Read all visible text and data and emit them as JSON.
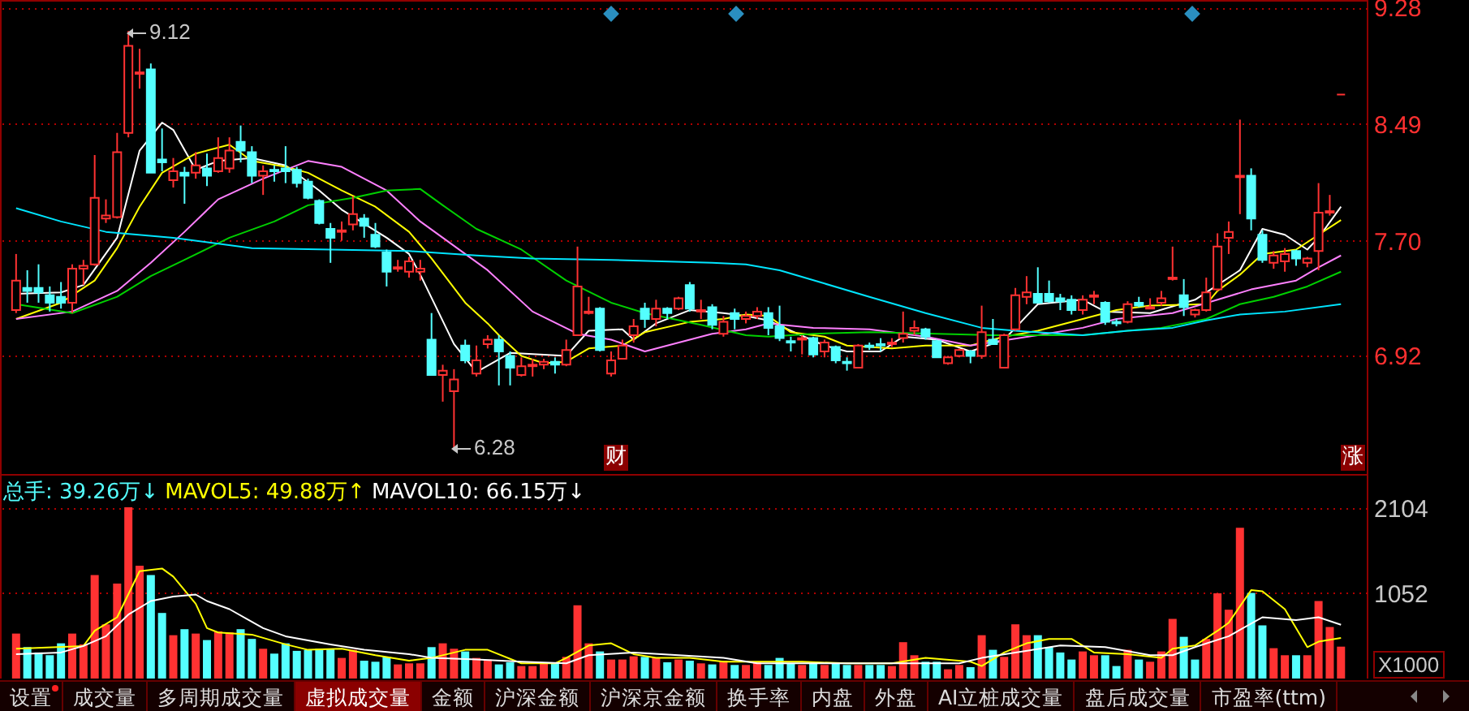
{
  "chart_data": [
    {
      "type": "candlestick",
      "categories": [
        null,
        null,
        null,
        null,
        null,
        null,
        null,
        null,
        null,
        null,
        null,
        null,
        null,
        null,
        null,
        null,
        null,
        null,
        null,
        null,
        null,
        null,
        null,
        null,
        null,
        null,
        null,
        null,
        null,
        null,
        null,
        null,
        null,
        null,
        null,
        null,
        null,
        null,
        null,
        null,
        null,
        null,
        null,
        null,
        null,
        null,
        null,
        null,
        null,
        null,
        null,
        null,
        null,
        null,
        null,
        null,
        null,
        null,
        null,
        null,
        null,
        null,
        null,
        null,
        null,
        null,
        null,
        null,
        null,
        null,
        null,
        null,
        null,
        null,
        null,
        null,
        null,
        null,
        null,
        null,
        null,
        null,
        null,
        null,
        null,
        null,
        null,
        null,
        null,
        null,
        null,
        null,
        null,
        null,
        null,
        null,
        null,
        null,
        null,
        null,
        null,
        null,
        null,
        null,
        null,
        null,
        null,
        null,
        null,
        null,
        null,
        null,
        null,
        null,
        null,
        null,
        null,
        null,
        null
      ],
      "ohlc": [
        [
          7.23,
          7.61,
          7.21,
          7.43
        ],
        [
          7.38,
          7.5,
          7.28,
          7.36
        ],
        [
          7.38,
          7.54,
          7.28,
          7.35
        ],
        [
          7.33,
          7.39,
          7.22,
          7.28
        ],
        [
          7.32,
          7.42,
          7.24,
          7.28
        ],
        [
          7.28,
          7.54,
          7.21,
          7.51
        ],
        [
          7.51,
          7.57,
          7.4,
          7.53
        ],
        [
          7.54,
          8.28,
          7.53,
          7.99
        ],
        [
          7.85,
          7.98,
          7.82,
          7.87
        ],
        [
          7.86,
          8.43,
          7.85,
          8.3
        ],
        [
          8.43,
          9.12,
          8.4,
          9.02
        ],
        [
          8.83,
          9.0,
          8.73,
          8.84
        ],
        [
          8.86,
          8.9,
          8.16,
          8.16
        ],
        [
          8.25,
          8.46,
          8.17,
          8.23
        ],
        [
          8.11,
          8.26,
          8.06,
          8.17
        ],
        [
          8.16,
          8.2,
          7.95,
          8.14
        ],
        [
          8.16,
          8.3,
          8.12,
          8.21
        ],
        [
          8.19,
          8.29,
          8.07,
          8.14
        ],
        [
          8.17,
          8.4,
          8.16,
          8.26
        ],
        [
          8.19,
          8.4,
          8.16,
          8.31
        ],
        [
          8.37,
          8.48,
          8.23,
          8.31
        ],
        [
          8.3,
          8.34,
          8.09,
          8.14
        ],
        [
          8.14,
          8.21,
          8.01,
          8.17
        ],
        [
          8.18,
          8.21,
          8.1,
          8.17
        ],
        [
          8.19,
          8.34,
          8.09,
          8.17
        ],
        [
          8.18,
          8.2,
          8.06,
          8.09
        ],
        [
          8.1,
          8.12,
          7.98,
          7.99
        ],
        [
          7.97,
          7.98,
          7.81,
          7.82
        ],
        [
          7.78,
          7.82,
          7.55,
          7.72
        ],
        [
          7.76,
          7.83,
          7.7,
          7.77
        ],
        [
          7.81,
          8.0,
          7.77,
          7.88
        ],
        [
          7.85,
          7.88,
          7.72,
          7.8
        ],
        [
          7.74,
          7.82,
          7.65,
          7.66
        ],
        [
          7.62,
          7.64,
          7.39,
          7.49
        ],
        [
          7.51,
          7.57,
          7.49,
          7.52
        ],
        [
          7.49,
          7.59,
          7.45,
          7.56
        ],
        [
          7.49,
          7.57,
          7.43,
          7.51
        ],
        [
          7.03,
          7.21,
          6.79,
          6.79
        ],
        [
          6.79,
          6.86,
          6.61,
          6.82
        ],
        [
          6.68,
          6.83,
          6.28,
          6.76
        ],
        [
          6.99,
          7.03,
          6.87,
          6.89
        ],
        [
          6.8,
          6.99,
          6.78,
          6.89
        ],
        [
          7.0,
          7.06,
          6.97,
          7.03
        ],
        [
          7.03,
          7.06,
          6.72,
          6.95
        ],
        [
          6.92,
          6.95,
          6.72,
          6.84
        ],
        [
          6.79,
          6.91,
          6.78,
          6.85
        ],
        [
          6.85,
          6.9,
          6.78,
          6.86
        ],
        [
          6.86,
          6.9,
          6.83,
          6.88
        ],
        [
          6.88,
          6.91,
          6.8,
          6.86
        ],
        [
          6.86,
          7.03,
          6.85,
          6.96
        ],
        [
          7.06,
          7.66,
          7.06,
          7.39
        ],
        [
          7.21,
          7.32,
          7.2,
          7.22
        ],
        [
          7.24,
          7.25,
          6.95,
          6.96
        ],
        [
          6.8,
          6.95,
          6.78,
          6.89
        ],
        [
          6.9,
          7.03,
          6.9,
          6.99
        ],
        [
          7.06,
          7.17,
          7.01,
          7.12
        ],
        [
          7.24,
          7.28,
          7.11,
          7.17
        ],
        [
          7.17,
          7.3,
          7.12,
          7.24
        ],
        [
          7.24,
          7.25,
          7.17,
          7.21
        ],
        [
          7.24,
          7.32,
          7.23,
          7.31
        ],
        [
          7.4,
          7.42,
          7.22,
          7.24
        ],
        [
          7.22,
          7.3,
          7.17,
          7.23
        ],
        [
          7.25,
          7.27,
          7.1,
          7.13
        ],
        [
          7.07,
          7.19,
          7.05,
          7.15
        ],
        [
          7.21,
          7.24,
          7.1,
          7.17
        ],
        [
          7.17,
          7.22,
          7.14,
          7.19
        ],
        [
          7.19,
          7.25,
          7.17,
          7.22
        ],
        [
          7.21,
          7.25,
          7.06,
          7.11
        ],
        [
          7.12,
          7.26,
          7.02,
          7.04
        ],
        [
          7.02,
          7.05,
          6.95,
          7.01
        ],
        [
          7.03,
          7.06,
          6.93,
          7.04
        ],
        [
          7.04,
          7.05,
          6.91,
          6.93
        ],
        [
          6.95,
          7.03,
          6.91,
          7.01
        ],
        [
          6.98,
          6.99,
          6.87,
          6.89
        ],
        [
          6.88,
          6.91,
          6.82,
          6.87
        ],
        [
          6.84,
          7.0,
          6.84,
          6.99
        ],
        [
          6.99,
          7.01,
          6.96,
          6.98
        ],
        [
          7.0,
          7.04,
          6.95,
          6.99
        ],
        [
          7.0,
          7.04,
          6.98,
          7.01
        ],
        [
          7.04,
          7.22,
          7.01,
          7.07
        ],
        [
          7.09,
          7.16,
          7.06,
          7.11
        ],
        [
          7.1,
          7.11,
          7.03,
          7.05
        ],
        [
          7.02,
          7.03,
          6.91,
          6.91
        ],
        [
          6.87,
          6.92,
          6.86,
          6.91
        ],
        [
          6.92,
          6.97,
          6.91,
          6.96
        ],
        [
          6.95,
          6.96,
          6.87,
          6.92
        ],
        [
          6.92,
          7.26,
          6.9,
          7.08
        ],
        [
          7.03,
          7.17,
          7.0,
          7.0
        ],
        [
          6.84,
          7.07,
          6.84,
          7.06
        ],
        [
          7.1,
          7.38,
          7.09,
          7.33
        ],
        [
          7.32,
          7.46,
          7.27,
          7.35
        ],
        [
          7.34,
          7.52,
          7.28,
          7.28
        ],
        [
          7.34,
          7.43,
          7.28,
          7.29
        ],
        [
          7.31,
          7.34,
          7.23,
          7.29
        ],
        [
          7.3,
          7.33,
          7.2,
          7.23
        ],
        [
          7.23,
          7.33,
          7.2,
          7.3
        ],
        [
          7.32,
          7.36,
          7.27,
          7.33
        ],
        [
          7.28,
          7.29,
          7.13,
          7.15
        ],
        [
          7.15,
          7.17,
          7.12,
          7.14
        ],
        [
          7.15,
          7.29,
          7.14,
          7.27
        ],
        [
          7.28,
          7.32,
          7.25,
          7.26
        ],
        [
          7.24,
          7.31,
          7.24,
          7.25
        ],
        [
          7.28,
          7.36,
          7.26,
          7.31
        ],
        [
          7.44,
          7.66,
          7.43,
          7.45
        ],
        [
          7.33,
          7.44,
          7.19,
          7.25
        ],
        [
          7.2,
          7.24,
          7.18,
          7.23
        ],
        [
          7.23,
          7.45,
          7.22,
          7.35
        ],
        [
          7.37,
          7.75,
          7.36,
          7.66
        ],
        [
          7.72,
          7.83,
          7.61,
          7.76
        ],
        [
          8.13,
          8.52,
          7.88,
          8.14
        ],
        [
          8.14,
          8.19,
          7.77,
          7.85
        ],
        [
          7.74,
          7.77,
          7.55,
          7.57
        ],
        [
          7.55,
          7.63,
          7.51,
          7.6
        ],
        [
          7.56,
          7.65,
          7.49,
          7.61
        ],
        [
          7.63,
          7.64,
          7.53,
          7.58
        ],
        [
          7.55,
          7.59,
          7.52,
          7.58
        ],
        [
          7.63,
          8.09,
          7.5,
          7.89
        ],
        [
          7.89,
          8.01,
          7.87,
          7.9
        ],
        [
          8.69,
          8.69,
          8.69,
          8.69
        ]
      ],
      "series": [
        {
          "type": "line",
          "color": "#ffffff",
          "values": [
            7.34,
            null,
            null,
            null,
            7.35,
            null,
            7.4,
            null,
            null,
            7.72,
            null,
            8.31,
            null,
            8.5,
            8.45,
            null,
            8.18,
            null,
            8.24,
            null,
            null,
            8.26,
            null,
            null,
            8.21,
            null,
            null,
            8.04,
            null,
            7.91,
            null,
            null,
            null,
            7.72,
            null,
            7.61,
            7.47,
            null,
            null,
            7.0,
            null,
            6.81,
            null,
            null,
            6.94,
            null,
            null,
            null,
            null,
            6.92,
            null,
            7.09,
            null,
            null,
            7.1,
            7.03,
            null,
            7.14,
            null,
            null,
            7.23,
            null,
            null,
            7.21,
            null,
            7.19,
            null,
            7.16,
            null,
            7.09,
            null,
            null,
            6.99,
            null,
            6.95,
            null,
            null,
            6.95,
            null,
            7.05,
            null,
            null,
            7.03,
            null,
            null,
            6.95,
            null,
            null,
            7.03,
            null,
            null,
            7.27,
            null,
            null,
            null,
            7.3,
            null,
            7.22,
            null,
            null,
            null,
            7.21,
            null,
            null,
            null,
            7.3,
            null,
            null,
            null,
            7.5,
            null,
            7.78,
            null,
            7.74,
            null,
            7.64,
            7.72,
            null,
            7.93
          ]
        },
        {
          "type": "line",
          "color": "#ffff00",
          "values": [
            7.17,
            null,
            null,
            null,
            7.28,
            null,
            null,
            7.43,
            null,
            7.65,
            null,
            7.93,
            null,
            8.16,
            null,
            null,
            8.29,
            null,
            null,
            8.35,
            null,
            8.24,
            null,
            null,
            8.2,
            null,
            8.16,
            null,
            null,
            8.04,
            null,
            null,
            7.93,
            null,
            null,
            7.76,
            null,
            7.58,
            null,
            null,
            7.28,
            null,
            7.14,
            7.06,
            null,
            6.92,
            null,
            6.87,
            null,
            6.88,
            null,
            6.97,
            null,
            null,
            6.99,
            null,
            7.08,
            null,
            null,
            null,
            7.15,
            null,
            null,
            7.17,
            null,
            7.2,
            null,
            7.19,
            null,
            7.08,
            null,
            null,
            7.05,
            null,
            6.99,
            null,
            null,
            null,
            6.97,
            null,
            null,
            6.99,
            null,
            null,
            null,
            6.99,
            null,
            null,
            7.05,
            null,
            null,
            7.09,
            null,
            null,
            null,
            7.17,
            null,
            null,
            7.23,
            null,
            null,
            7.26,
            null,
            null,
            null,
            null,
            7.27,
            7.36,
            null,
            7.47,
            null,
            7.61,
            null,
            null,
            7.64,
            null,
            7.74,
            null,
            7.84
          ]
        },
        {
          "type": "line",
          "color": "#ff80ff",
          "values": [
            7.17,
            null,
            null,
            null,
            null,
            7.22,
            null,
            null,
            null,
            7.36,
            null,
            null,
            7.55,
            null,
            null,
            7.76,
            null,
            null,
            7.98,
            null,
            null,
            null,
            8.12,
            null,
            null,
            null,
            8.24,
            null,
            null,
            8.2,
            null,
            null,
            null,
            8.04,
            null,
            null,
            7.83,
            null,
            null,
            null,
            7.61,
            null,
            7.5,
            null,
            null,
            null,
            7.22,
            null,
            null,
            null,
            7.07,
            null,
            null,
            7.03,
            null,
            null,
            6.95,
            null,
            null,
            null,
            7.03,
            null,
            7.07,
            null,
            null,
            7.1,
            null,
            7.14,
            null,
            null,
            null,
            7.11,
            null,
            null,
            null,
            null,
            7.1,
            null,
            null,
            null,
            null,
            7.05,
            null,
            null,
            null,
            6.99,
            null,
            null,
            null,
            null,
            null,
            7.06,
            null,
            null,
            null,
            7.11,
            null,
            null,
            7.17,
            null,
            null,
            null,
            null,
            7.21,
            null,
            null,
            null,
            7.3,
            null,
            null,
            7.37,
            null,
            null,
            null,
            7.43,
            null,
            7.52,
            null,
            7.6
          ]
        },
        {
          "type": "line",
          "color": "#00d000",
          "values": [
            7.27,
            null,
            null,
            null,
            null,
            7.21,
            null,
            null,
            null,
            7.32,
            null,
            null,
            7.46,
            null,
            null,
            7.57,
            null,
            null,
            null,
            7.72,
            null,
            null,
            null,
            7.83,
            null,
            null,
            7.94,
            null,
            null,
            null,
            7.99,
            null,
            null,
            8.04,
            null,
            null,
            8.05,
            null,
            7.94,
            null,
            null,
            7.78,
            null,
            null,
            null,
            7.64,
            null,
            null,
            null,
            7.43,
            null,
            null,
            null,
            7.28,
            null,
            null,
            7.21,
            null,
            null,
            null,
            null,
            7.13,
            null,
            null,
            null,
            7.06,
            null,
            7.05,
            null,
            null,
            null,
            7.07,
            null,
            null,
            null,
            null,
            7.08,
            null,
            null,
            null,
            null,
            null,
            7.07,
            null,
            null,
            null,
            null,
            7.06,
            null,
            null,
            null,
            null,
            7.06,
            null,
            null,
            7.06,
            null,
            null,
            null,
            7.09,
            null,
            null,
            7.11,
            null,
            null,
            null,
            7.17,
            null,
            null,
            7.27,
            null,
            null,
            7.32,
            null,
            null,
            7.39,
            null,
            null,
            7.49
          ]
        },
        {
          "type": "line",
          "color": "#00e5ff",
          "values": [
            7.92,
            null,
            null,
            null,
            7.83,
            null,
            null,
            null,
            7.76,
            null,
            null,
            null,
            null,
            null,
            7.72,
            null,
            null,
            null,
            null,
            null,
            null,
            7.65,
            null,
            null,
            null,
            null,
            null,
            null,
            7.64,
            null,
            null,
            null,
            null,
            null,
            null,
            7.63,
            null,
            null,
            null,
            null,
            null,
            7.6,
            null,
            null,
            null,
            null,
            7.58,
            null,
            null,
            null,
            null,
            null,
            null,
            7.57,
            null,
            null,
            null,
            null,
            null,
            null,
            null,
            null,
            7.55,
            null,
            null,
            7.54,
            null,
            null,
            7.5,
            null,
            null,
            null,
            7.41,
            null,
            null,
            null,
            7.32,
            null,
            null,
            null,
            null,
            7.21,
            null,
            null,
            null,
            null,
            7.11,
            null,
            null,
            7.09,
            null,
            null,
            null,
            null,
            null,
            7.06,
            null,
            null,
            null,
            7.09,
            null,
            null,
            null,
            7.11,
            null,
            null,
            7.16,
            null,
            null,
            7.2,
            null,
            null,
            null,
            7.22,
            null,
            null,
            null,
            null,
            7.27
          ]
        }
      ],
      "ylim": [
        6.12,
        9.33
      ],
      "yticks": [
        {
          "value": 6.92,
          "label": "6.92"
        },
        {
          "value": 7.7,
          "label": "7.70"
        },
        {
          "value": 8.49,
          "label": "8.49"
        },
        {
          "value": 9.28,
          "label": "9.28"
        }
      ],
      "grid": "y",
      "tick_labels": "y",
      "annotations": [
        "9.12",
        "6.28",
        "财",
        "涨"
      ]
    },
    {
      "type": "bar",
      "categories": [
        null,
        null,
        null,
        null,
        null,
        null,
        null,
        null,
        null,
        null,
        null,
        null,
        null,
        null,
        null,
        null,
        null,
        null,
        null,
        null,
        null,
        null,
        null,
        null,
        null,
        null,
        null,
        null,
        null,
        null,
        null,
        null,
        null,
        null,
        null,
        null,
        null,
        null,
        null,
        null,
        null,
        null,
        null,
        null,
        null,
        null,
        null,
        null,
        null,
        null,
        null,
        null,
        null,
        null,
        null,
        null,
        null,
        null,
        null,
        null,
        null,
        null,
        null,
        null,
        null,
        null,
        null,
        null,
        null,
        null,
        null,
        null,
        null,
        null,
        null,
        null,
        null,
        null,
        null,
        null,
        null,
        null,
        null,
        null,
        null,
        null,
        null,
        null,
        null,
        null,
        null,
        null,
        null,
        null,
        null,
        null,
        null,
        null,
        null,
        null,
        null,
        null,
        null,
        null,
        null,
        null,
        null,
        null,
        null,
        null,
        null,
        null,
        null,
        null,
        null,
        null,
        null,
        null,
        null
      ],
      "series": [
        {
          "type": "bar",
          "values": [
            554,
            387,
            321,
            287,
            434,
            554,
            421,
            1276,
            668,
            1169,
            2111,
            1389,
            1276,
            808,
            534,
            608,
            554,
            474,
            581,
            568,
            608,
            488,
            367,
            307,
            434,
            341,
            354,
            367,
            367,
            254,
            354,
            220,
            207,
            267,
            174,
            187,
            187,
            387,
            434,
            367,
            334,
            254,
            234,
            174,
            200,
            154,
            154,
            187,
            200,
            267,
            902,
            434,
            334,
            234,
            234,
            274,
            267,
            254,
            200,
            234,
            220,
            187,
            174,
            220,
            167,
            167,
            207,
            167,
            254,
            187,
            167,
            187,
            167,
            200,
            167,
            167,
            167,
            167,
            154,
            448,
            287,
            207,
            207,
            114,
            167,
            140,
            534,
            354,
            267,
            668,
            534,
            534,
            387,
            321,
            234,
            334,
            287,
            287,
            154,
            354,
            234,
            207,
            334,
            735,
            514,
            234,
            488,
            1049,
            848,
            1857,
            1055,
            655,
            374,
            287,
            287,
            287,
            955,
            635,
            393
          ],
          "colors": [
            "#ff3232",
            "#54ffff",
            "#54ffff",
            "#54ffff",
            "#54ffff",
            "#ff3232",
            "#ff3232",
            "#ff3232",
            "#ff3232",
            "#ff3232",
            "#ff3232",
            "#ff3232",
            "#54ffff",
            "#54ffff",
            "#ff3232",
            "#54ffff",
            "#ff3232",
            "#54ffff",
            "#ff3232",
            "#ff3232",
            "#54ffff",
            "#54ffff",
            "#ff3232",
            "#54ffff",
            "#54ffff",
            "#54ffff",
            "#54ffff",
            "#54ffff",
            "#54ffff",
            "#ff3232",
            "#ff3232",
            "#54ffff",
            "#54ffff",
            "#54ffff",
            "#ff3232",
            "#ff3232",
            "#ff3232",
            "#54ffff",
            "#ff3232",
            "#ff3232",
            "#54ffff",
            "#ff3232",
            "#ff3232",
            "#54ffff",
            "#54ffff",
            "#ff3232",
            "#ff3232",
            "#ff3232",
            "#54ffff",
            "#ff3232",
            "#ff3232",
            "#ff3232",
            "#54ffff",
            "#ff3232",
            "#ff3232",
            "#ff3232",
            "#54ffff",
            "#ff3232",
            "#54ffff",
            "#ff3232",
            "#54ffff",
            "#ff3232",
            "#54ffff",
            "#ff3232",
            "#54ffff",
            "#ff3232",
            "#ff3232",
            "#54ffff",
            "#54ffff",
            "#54ffff",
            "#ff3232",
            "#54ffff",
            "#ff3232",
            "#54ffff",
            "#54ffff",
            "#ff3232",
            "#54ffff",
            "#54ffff",
            "#ff3232",
            "#ff3232",
            "#ff3232",
            "#54ffff",
            "#54ffff",
            "#ff3232",
            "#ff3232",
            "#54ffff",
            "#ff3232",
            "#54ffff",
            "#ff3232",
            "#ff3232",
            "#ff3232",
            "#54ffff",
            "#54ffff",
            "#54ffff",
            "#54ffff",
            "#ff3232",
            "#ff3232",
            "#54ffff",
            "#54ffff",
            "#ff3232",
            "#54ffff",
            "#ff3232",
            "#ff3232",
            "#ff3232",
            "#54ffff",
            "#54ffff",
            "#ff3232",
            "#ff3232",
            "#ff3232",
            "#ff3232",
            "#54ffff",
            "#54ffff",
            "#ff3232",
            "#ff3232",
            "#54ffff",
            "#ff3232",
            "#ff3232",
            "#ff3232",
            "#ff3232"
          ]
        },
        {
          "type": "line",
          "color": "#ffff00",
          "values": [
            367,
            null,
            null,
            null,
            null,
            null,
            401,
            588,
            null,
            755,
            null,
            1323,
            null,
            1356,
            1256,
            null,
            922,
            621,
            568,
            null,
            null,
            541,
            null,
            null,
            421,
            null,
            354,
            null,
            null,
            367,
            null,
            null,
            287,
            null,
            null,
            220,
            null,
            254,
            null,
            null,
            354,
            null,
            354,
            null,
            null,
            187,
            null,
            null,
            187,
            254,
            null,
            407,
            null,
            434,
            null,
            301,
            null,
            254,
            null,
            null,
            254,
            null,
            null,
            207,
            null,
            null,
            207,
            null,
            null,
            null,
            207,
            null,
            null,
            null,
            187,
            null,
            null,
            null,
            187,
            null,
            null,
            254,
            null,
            null,
            null,
            207,
            154,
            null,
            321,
            null,
            434,
            null,
            488,
            null,
            488,
            null,
            321,
            null,
            null,
            301,
            null,
            null,
            254,
            367,
            null,
            407,
            null,
            588,
            688,
            null,
            1089,
            1075,
            null,
            855,
            null,
            387,
            454,
            null,
            499
          ]
        },
        {
          "type": "line",
          "color": "#ffffff",
          "values": [
            301,
            null,
            null,
            null,
            321,
            null,
            401,
            null,
            521,
            null,
            788,
            null,
            955,
            null,
            1009,
            null,
            1035,
            955,
            null,
            855,
            null,
            null,
            621,
            null,
            521,
            null,
            null,
            null,
            421,
            null,
            null,
            354,
            null,
            null,
            null,
            301,
            null,
            254,
            null,
            null,
            null,
            234,
            null,
            null,
            null,
            207,
            null,
            null,
            null,
            187,
            null,
            287,
            null,
            null,
            null,
            321,
            null,
            null,
            null,
            287,
            null,
            null,
            null,
            254,
            null,
            null,
            187,
            null,
            null,
            null,
            null,
            null,
            null,
            187,
            null,
            null,
            null,
            null,
            null,
            187,
            null,
            null,
            null,
            null,
            187,
            null,
            254,
            null,
            null,
            321,
            null,
            null,
            null,
            407,
            null,
            null,
            null,
            387,
            null,
            null,
            null,
            287,
            null,
            287,
            null,
            387,
            null,
            null,
            521,
            null,
            null,
            755,
            null,
            null,
            721,
            null,
            755,
            null,
            662
          ]
        }
      ],
      "ylim": [
        0,
        2520
      ],
      "yticks": [
        {
          "value": 1052,
          "label": "1052"
        },
        {
          "value": 2104,
          "label": "2104"
        }
      ],
      "grid": "y",
      "tick_labels": "y",
      "annotations": [
        "总手: 39.26万↓",
        "MAVOL5: 49.88万↑",
        "MAVOL10: 66.15万↓",
        "X1000",
        "设置",
        "成交量",
        "多周期成交量",
        "虚拟成交量",
        "金额",
        "沪深金额",
        "沪深京金额",
        "换手率",
        "内盘",
        "外盘",
        "AI立桩成交量",
        "盘后成交量",
        "市盈率(ttm)"
      ]
    }
  ]
}
